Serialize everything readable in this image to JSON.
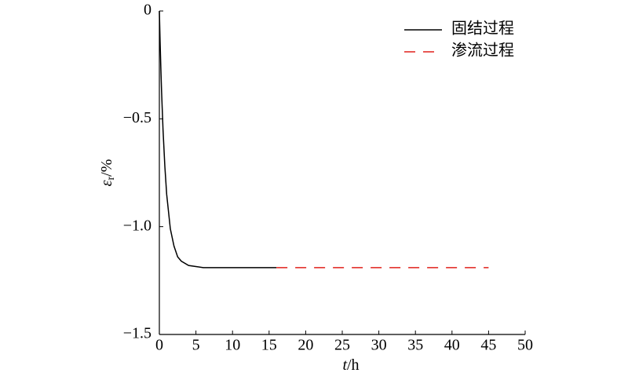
{
  "chart_data": {
    "type": "line",
    "x_label": {
      "symbol": "t",
      "unit": "/h"
    },
    "y_label": {
      "symbol": "ε",
      "subscript": "r",
      "unit": "/%"
    },
    "xlim": [
      0,
      50
    ],
    "xticks": [
      0,
      5,
      10,
      15,
      20,
      25,
      30,
      35,
      40,
      45,
      50
    ],
    "ylim": [
      -1.5,
      0
    ],
    "yticks": [
      0,
      {
        "value": -0.5,
        "label": "−0.5"
      },
      {
        "value": -1.0,
        "label": "−1.0"
      },
      {
        "value": -1.5,
        "label": "−1.5"
      }
    ],
    "grid": false,
    "legend": "upper right",
    "series": [
      {
        "name": "固结过程",
        "color": "#000000",
        "dash": false,
        "x": [
          0,
          0.1,
          0.2,
          0.3,
          0.5,
          0.75,
          1,
          1.5,
          2,
          2.5,
          3,
          4,
          5,
          6,
          8,
          10,
          12,
          14,
          16
        ],
        "values": [
          0,
          -0.14,
          -0.26,
          -0.37,
          -0.55,
          -0.72,
          -0.85,
          -1.01,
          -1.09,
          -1.14,
          -1.16,
          -1.18,
          -1.185,
          -1.19,
          -1.19,
          -1.19,
          -1.19,
          -1.19,
          -1.19
        ]
      },
      {
        "name": "渗流过程",
        "color": "#e0201b",
        "dash": true,
        "x": [
          16,
          20,
          30,
          40,
          45
        ],
        "values": [
          -1.19,
          -1.19,
          -1.19,
          -1.19,
          -1.19
        ]
      }
    ]
  }
}
